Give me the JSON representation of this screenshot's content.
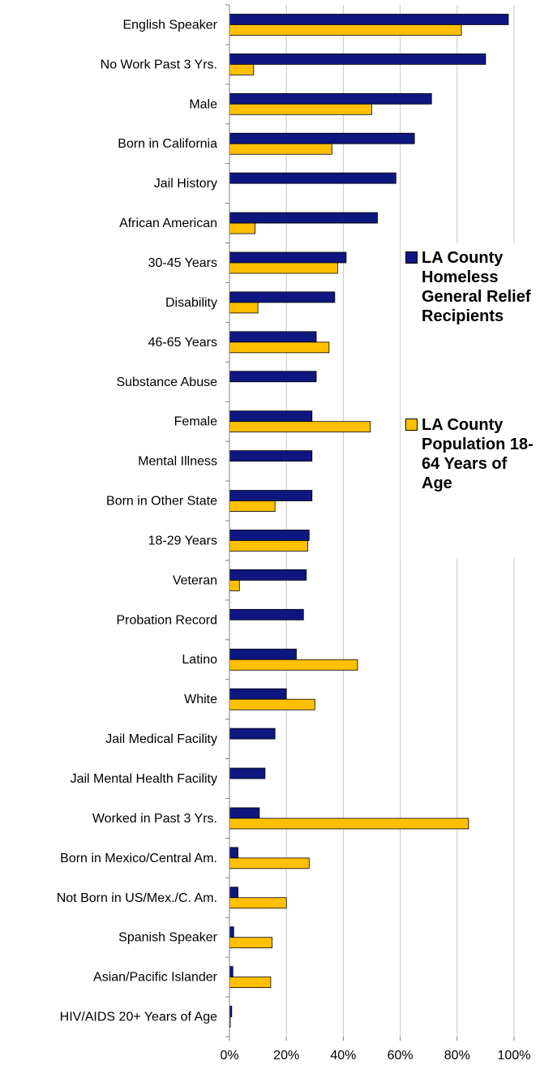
{
  "chart_data": {
    "type": "bar",
    "orientation": "horizontal",
    "categories": [
      "English Speaker",
      "No Work Past 3 Yrs.",
      "Male",
      "Born in California",
      "Jail History",
      "African American",
      "30-45 Years",
      "Disability",
      "46-65 Years",
      "Substance Abuse",
      "Female",
      "Mental Illness",
      "Born in Other State",
      "18-29 Years",
      "Veteran",
      "Probation Record",
      "Latino",
      "White",
      "Jail Medical Facility",
      "Jail Mental Health Facility",
      "Worked in Past 3 Yrs.",
      "Born in Mexico/Central Am.",
      "Not Born in US/Mex./C. Am.",
      "Spanish Speaker",
      "Asian/Pacific Islander",
      "HIV/AIDS 20+ Years of Age"
    ],
    "series": [
      {
        "name": "LA County Homeless General Relief Recipients",
        "color": "#0e1780",
        "values": [
          98,
          90,
          71,
          65,
          58.5,
          52,
          41,
          37,
          30.5,
          30.5,
          29,
          29,
          29,
          28,
          27,
          26,
          23.5,
          20,
          16,
          12.5,
          10.5,
          3,
          3,
          1.5,
          1.2,
          0.8
        ]
      },
      {
        "name": "LA County Population 18-64 Years of Age",
        "color": "#ffc000",
        "values": [
          81.5,
          8.5,
          50,
          36,
          null,
          9,
          38,
          10,
          35,
          null,
          49.5,
          null,
          16,
          27.5,
          3.5,
          null,
          45,
          30,
          null,
          null,
          84,
          28,
          20,
          15,
          14.5,
          0.3
        ]
      }
    ],
    "xlim": [
      0,
      100
    ],
    "xticks": [
      "0%",
      "20%",
      "40%",
      "60%",
      "80%",
      "100%"
    ],
    "grid": true,
    "legend_position": "right"
  }
}
